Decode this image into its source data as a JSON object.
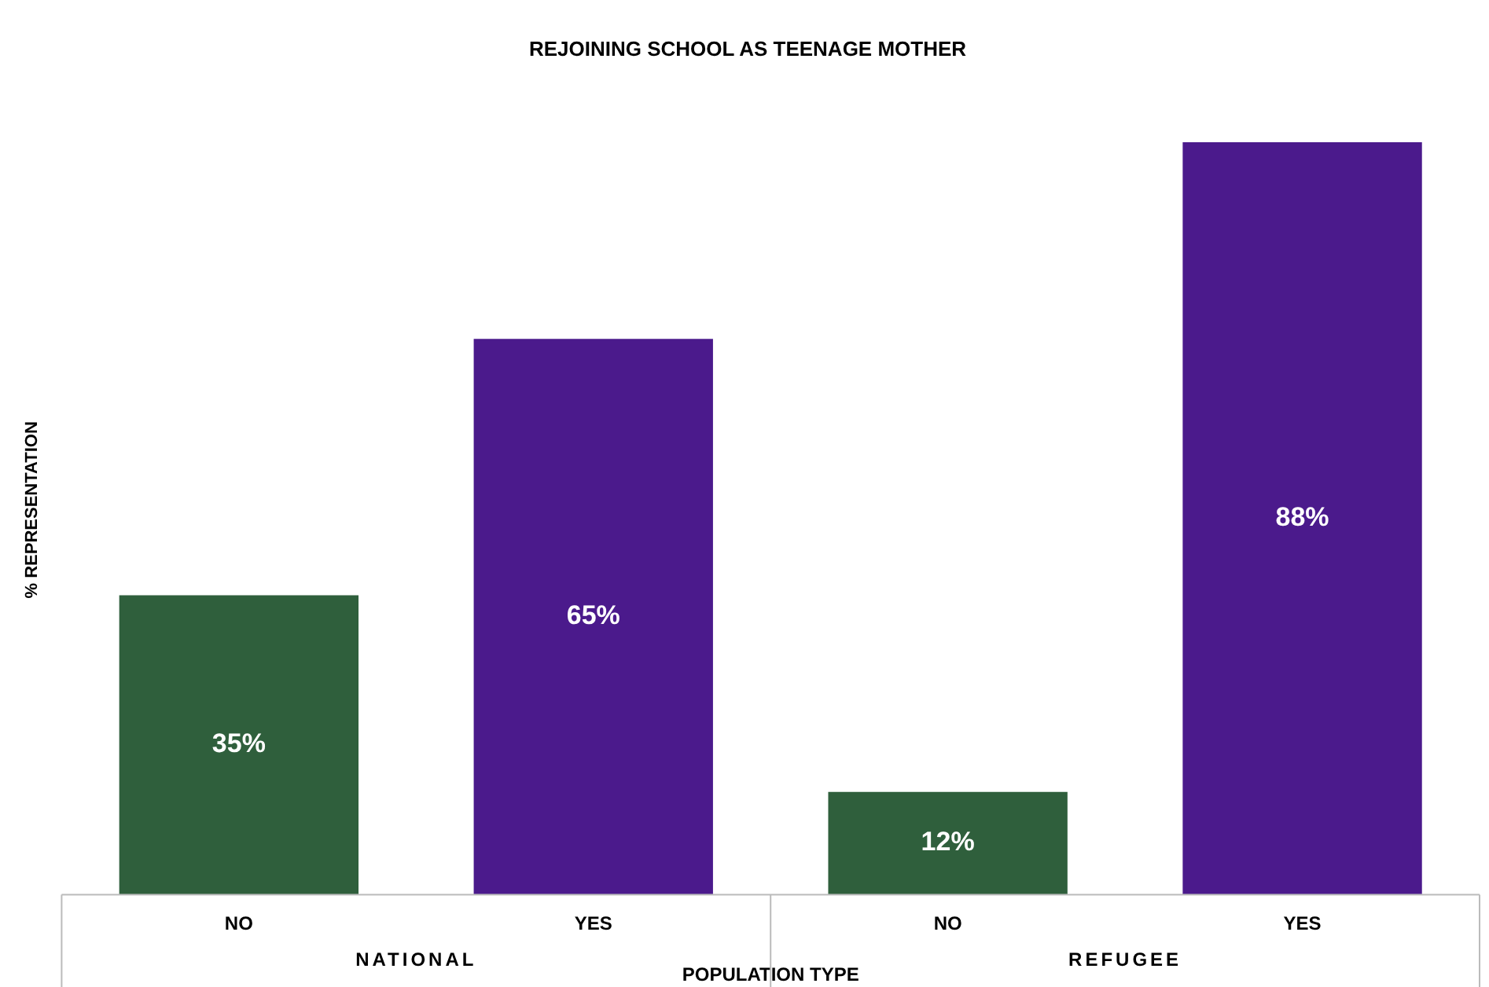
{
  "chart_data": {
    "type": "bar",
    "title": "REJOINING SCHOOL AS TEENAGE MOTHER",
    "xlabel": "POPULATION TYPE",
    "ylabel": "% REPRESENTATION",
    "categories": [
      "NO",
      "YES",
      "NO",
      "YES"
    ],
    "values": [
      35,
      65,
      12,
      88
    ],
    "colors": [
      "#2f5f3c",
      "#4b1a8c",
      "#2f5f3c",
      "#4b1a8c"
    ],
    "value_labels": [
      "35%",
      "65%",
      "12%",
      "88%"
    ],
    "annotations": [
      "NATIONAL",
      "REFUGEE"
    ],
    "tick_labels": "x",
    "grid": false,
    "legend": false
  }
}
